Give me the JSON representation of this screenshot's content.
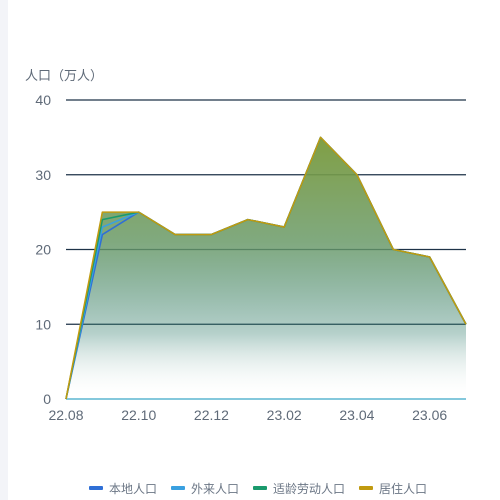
{
  "chart_data": {
    "type": "area",
    "ylabel": "人口（万人）",
    "ylim": [
      0,
      40
    ],
    "yticks": [
      "0",
      "10",
      "20",
      "30",
      "40"
    ],
    "x": [
      "22.08",
      "22.09",
      "22.10",
      "22.11",
      "22.12",
      "23.01",
      "23.02",
      "23.03",
      "23.04",
      "23.05",
      "23.06",
      "23.07"
    ],
    "xtick_labels": [
      "22.08",
      "22.10",
      "22.12",
      "23.02",
      "23.04",
      "23.06"
    ],
    "series": [
      {
        "name": "本地人口",
        "color": "#2f6fd6",
        "values": [
          0,
          22,
          25,
          22,
          22,
          24,
          23,
          35,
          30,
          20,
          19,
          10
        ]
      },
      {
        "name": "外来人口",
        "color": "#3aa0e0",
        "values": [
          0,
          23,
          25,
          22,
          22,
          24,
          23,
          35,
          30,
          20,
          19,
          10
        ]
      },
      {
        "name": "适龄劳动人口",
        "color": "#1a9a6c",
        "values": [
          0,
          24,
          25,
          22,
          22,
          24,
          23,
          35,
          30,
          20,
          19,
          10
        ]
      },
      {
        "name": "居住人口",
        "color": "#c09a10",
        "values": [
          0,
          25,
          25,
          22,
          22,
          24,
          23,
          35,
          30,
          20,
          19,
          10
        ]
      }
    ],
    "grid": true,
    "legend_position": "bottom"
  }
}
